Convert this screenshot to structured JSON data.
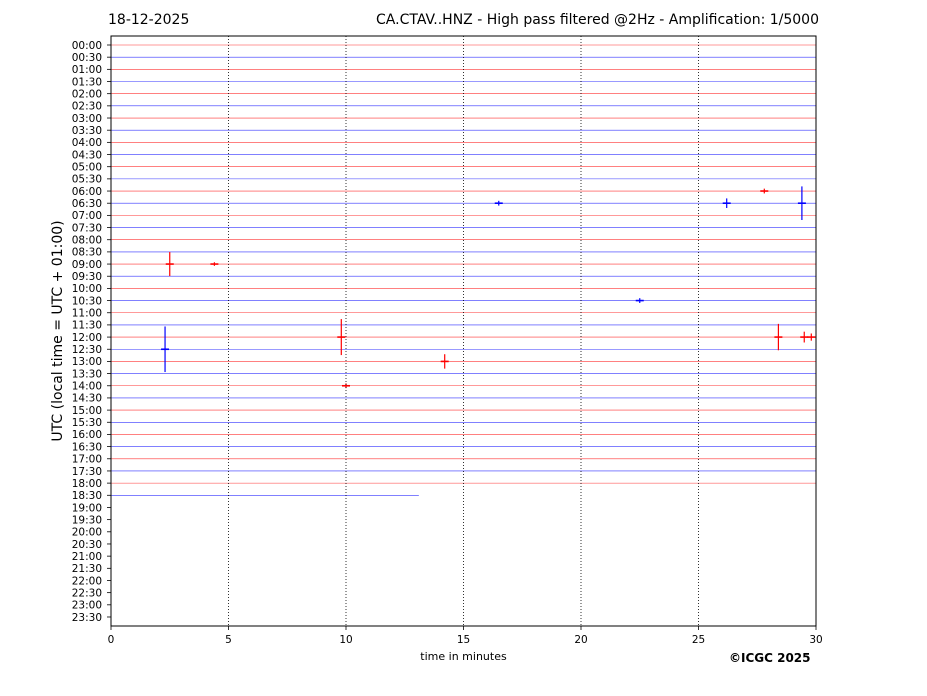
{
  "header": {
    "date": "18-12-2025",
    "title": "CA.CTAV..HNZ - High pass filtered @2Hz - Amplification: 1/5000"
  },
  "copyright": "©ICGC 2025",
  "colors": {
    "odd_trace": "#ff0000",
    "even_trace": "#0000ff",
    "axes": "#000000"
  },
  "chart_data": {
    "type": "line",
    "title": "CA.CTAV..HNZ - High pass filtered @2Hz - Amplification: 1/5000",
    "xlabel": "time in minutes",
    "ylabel": "UTC (local time = UTC + 01:00)",
    "xlim": [
      0,
      30
    ],
    "x_ticks": [
      0,
      5,
      10,
      15,
      20,
      25,
      30
    ],
    "vertical_gridlines_at": [
      5,
      10,
      15,
      20,
      25
    ],
    "grid": "vertical dotted",
    "row_labels": [
      "00:00",
      "00:30",
      "01:00",
      "01:30",
      "02:00",
      "02:30",
      "03:00",
      "03:30",
      "04:00",
      "04:30",
      "05:00",
      "05:30",
      "06:00",
      "06:30",
      "07:00",
      "07:30",
      "08:00",
      "08:30",
      "09:00",
      "09:30",
      "10:00",
      "10:30",
      "11:00",
      "11:30",
      "12:00",
      "12:30",
      "13:00",
      "13:30",
      "14:00",
      "14:30",
      "15:00",
      "15:30",
      "16:00",
      "16:30",
      "17:00",
      "17:30",
      "18:00",
      "18:30",
      "19:00",
      "19:30",
      "20:00",
      "20:30",
      "21:00",
      "21:30",
      "22:00",
      "22:30",
      "23:00",
      "23:30"
    ],
    "recorded_rows": 38,
    "last_row_end_minute": 13.1,
    "trace_colors_alternate": [
      "red",
      "blue"
    ],
    "events": [
      {
        "row": "06:30",
        "minute": 29.4,
        "amplitude": 2.8
      },
      {
        "row": "06:30",
        "minute": 26.2,
        "amplitude": 0.8
      },
      {
        "row": "09:00",
        "minute": 2.5,
        "amplitude": 2.0
      },
      {
        "row": "12:00",
        "minute": 9.8,
        "amplitude": 3.0
      },
      {
        "row": "12:00",
        "minute": 28.4,
        "amplitude": 2.2
      },
      {
        "row": "12:00",
        "minute": 29.5,
        "amplitude": 0.9
      },
      {
        "row": "12:00",
        "minute": 29.8,
        "amplitude": 0.6
      },
      {
        "row": "12:30",
        "minute": 2.3,
        "amplitude": 3.8
      },
      {
        "row": "13:00",
        "minute": 14.2,
        "amplitude": 1.2
      },
      {
        "row": "10:30",
        "minute": 22.5,
        "amplitude": 0.4
      },
      {
        "row": "06:00",
        "minute": 27.8,
        "amplitude": 0.4
      },
      {
        "row": "14:00",
        "minute": 10.0,
        "amplitude": 0.4
      },
      {
        "row": "09:00",
        "minute": 4.4,
        "amplitude": 0.3
      },
      {
        "row": "06:30",
        "minute": 16.5,
        "amplitude": 0.4
      }
    ]
  }
}
